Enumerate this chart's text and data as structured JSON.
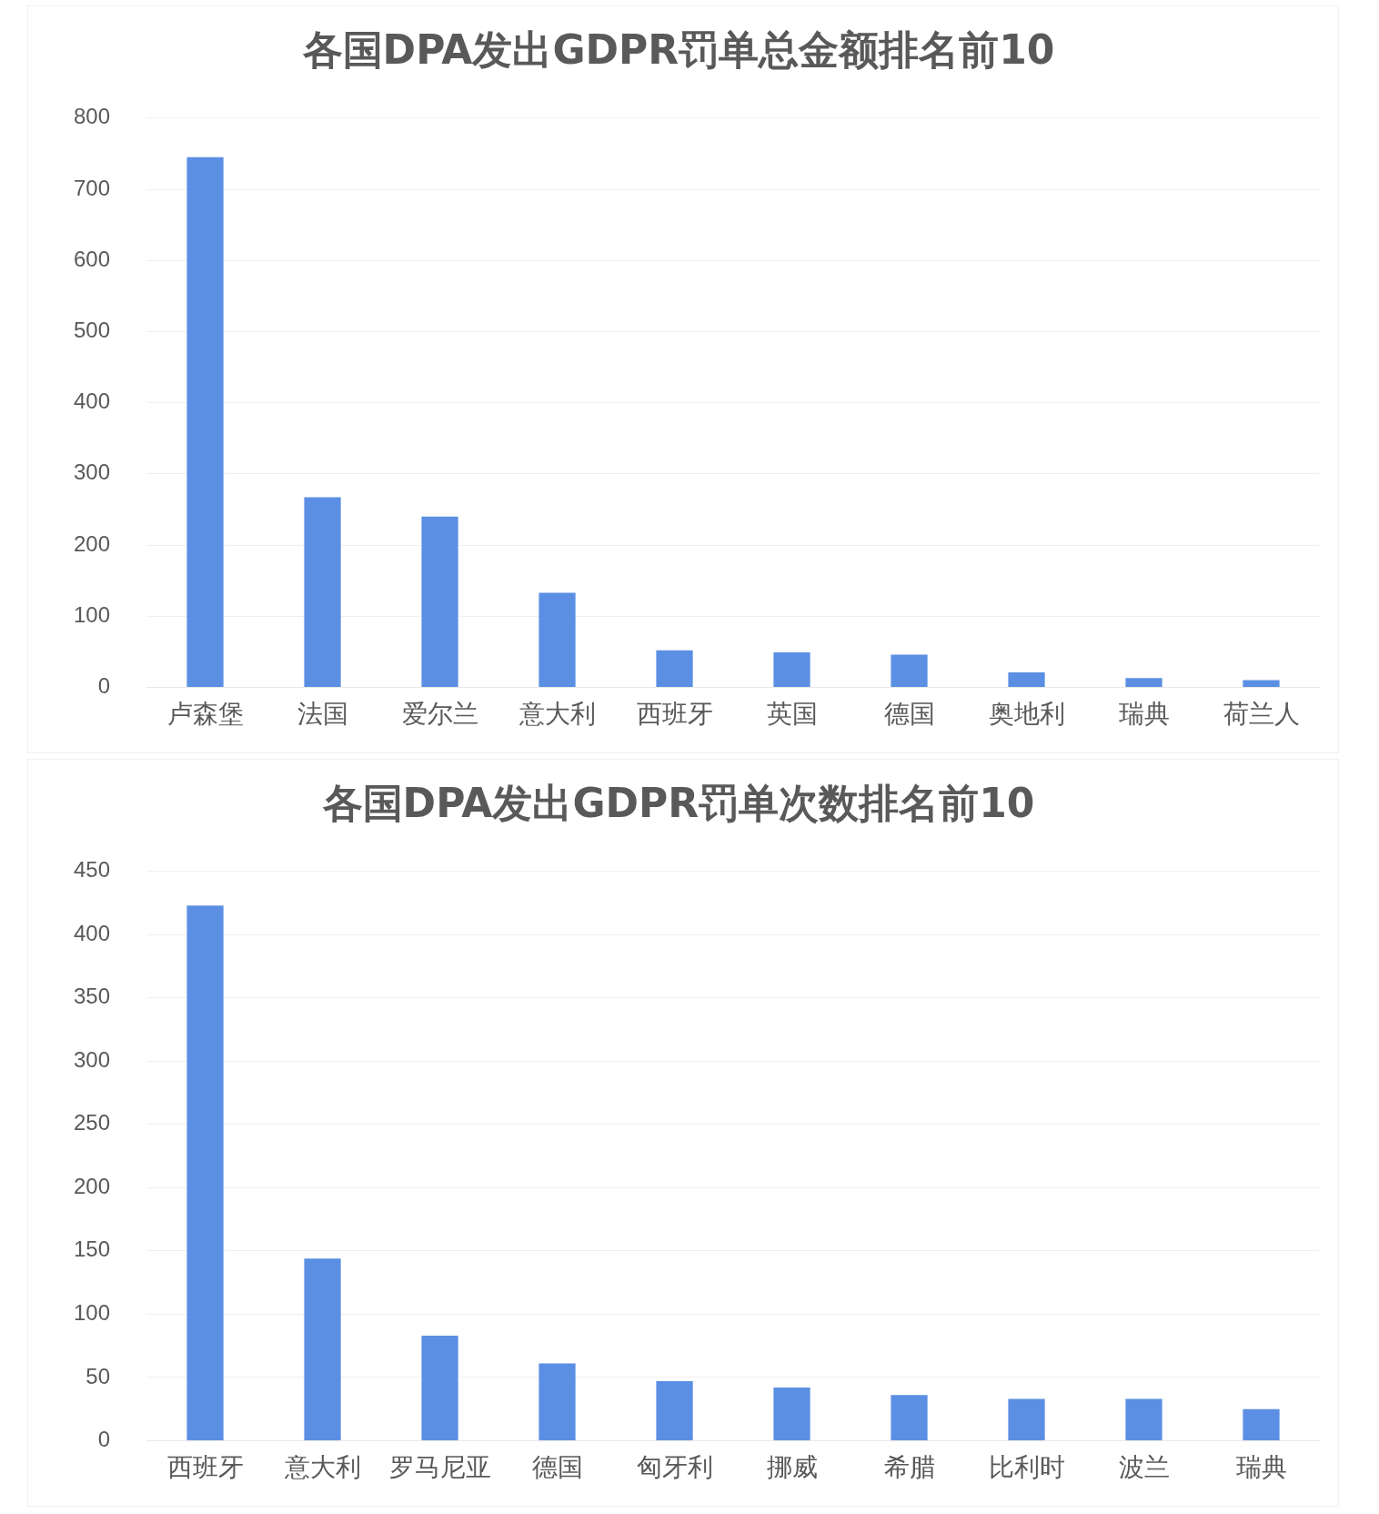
{
  "chart_data": [
    {
      "type": "bar",
      "title": "各国DPA发出GDPR罚单总金额排名前10",
      "categories": [
        "卢森堡",
        "法国",
        "爱尔兰",
        "意大利",
        "西班牙",
        "英国",
        "德国",
        "奥地利",
        "瑞典",
        "荷兰人"
      ],
      "values": [
        745,
        267,
        240,
        133,
        52,
        49,
        46,
        21,
        13,
        10
      ],
      "color": "#5b8fe3",
      "ylim": [
        0,
        800
      ],
      "yticks": [
        0,
        100,
        200,
        300,
        400,
        500,
        600,
        700,
        800
      ],
      "grid": "y"
    },
    {
      "type": "bar",
      "title": "各国DPA发出GDPR罚单次数排名前10",
      "categories": [
        "西班牙",
        "意大利",
        "罗马尼亚",
        "德国",
        "匈牙利",
        "挪威",
        "希腊",
        "比利时",
        "波兰",
        "瑞典"
      ],
      "values": [
        423,
        144,
        83,
        61,
        47,
        42,
        36,
        33,
        33,
        25
      ],
      "color": "#5b8fe3",
      "ylim": [
        0,
        450
      ],
      "yticks": [
        0,
        50,
        100,
        150,
        200,
        250,
        300,
        350,
        400,
        450
      ],
      "grid": "y"
    }
  ]
}
